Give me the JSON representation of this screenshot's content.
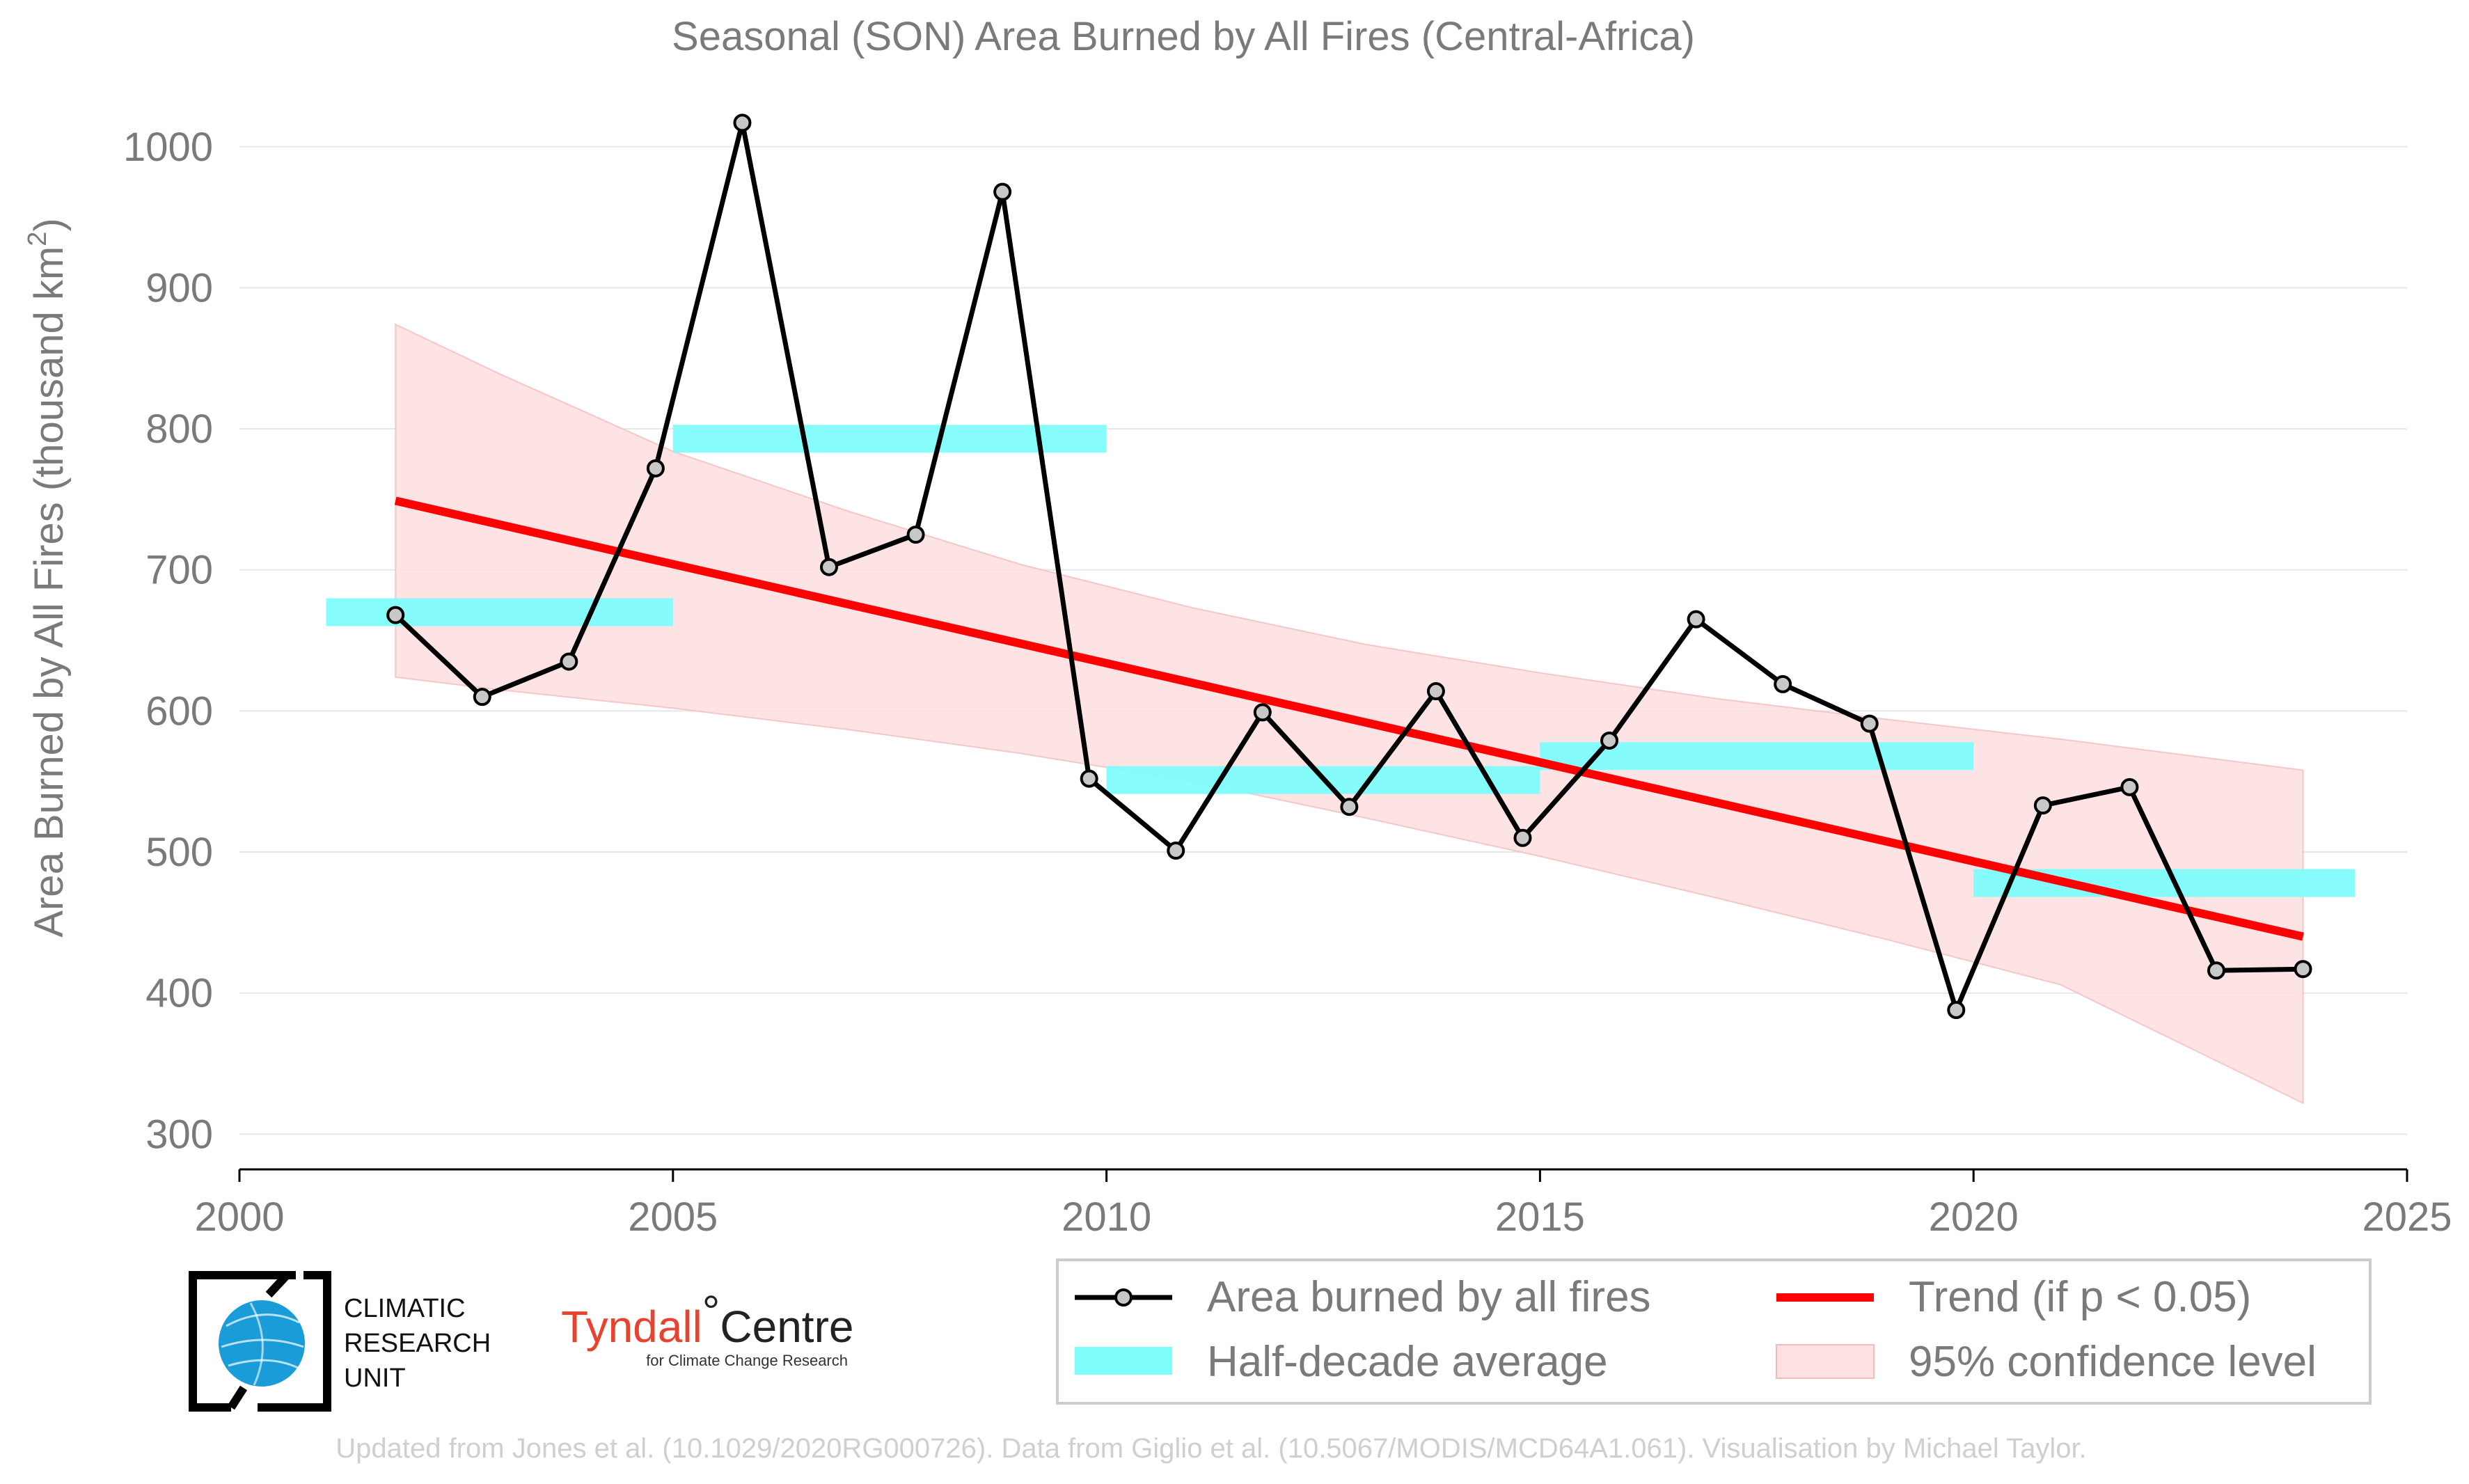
{
  "title": "Seasonal (SON) Area Burned by All Fires (Central-Africa)",
  "footer": "Updated from Jones et al. (10.1029/2020RG000726). Data from Giglio et al. (10.5067/MODIS/MCD64A1.061). Visualisation by Michael Taylor.",
  "logos": {
    "cru_lines": [
      "CLIMATIC",
      "RESEARCH",
      "UNIT"
    ],
    "tyndall_a": "Tyndall",
    "tyndall_degree": "°",
    "tyndall_b": "Centre",
    "tyndall_sub": "for Climate Change Research"
  },
  "legend": {
    "series": "Area burned by all fires",
    "half": "Half-decade average",
    "trend": "Trend (if p < 0.05)",
    "ci": "95% confidence level"
  },
  "colors": {
    "series": "#000000",
    "marker_fill": "#c8c8c8",
    "trend": "#ff0000",
    "half": "#7ffcfc",
    "ci": "#fde2e3",
    "grid": "#e6e6e6",
    "text": "#7a7a7a"
  },
  "chart_data": {
    "type": "line",
    "title": "Seasonal (SON) Area Burned by All Fires (Central-Africa)",
    "ylabel": "Area Burned by All Fires (thousand km²)",
    "xlim": [
      2000,
      2025
    ],
    "ylim": [
      275,
      1030
    ],
    "xticks": [
      2000,
      2005,
      2010,
      2015,
      2020,
      2025
    ],
    "yticks": [
      300,
      400,
      500,
      600,
      700,
      800,
      900,
      1000
    ],
    "grid": "horizontal",
    "legend_position": "bottom-right",
    "series": [
      {
        "name": "Area burned by all fires",
        "x": [
          2001.8,
          2002.8,
          2003.8,
          2004.8,
          2005.8,
          2006.8,
          2007.8,
          2008.8,
          2009.8,
          2010.8,
          2011.8,
          2012.8,
          2013.8,
          2014.8,
          2015.8,
          2016.8,
          2017.8,
          2018.8,
          2019.8,
          2020.8,
          2021.8,
          2022.8,
          2023.8
        ],
        "y": [
          668,
          610,
          635,
          772,
          1017,
          702,
          725,
          968,
          552,
          501,
          599,
          532,
          614,
          510,
          579,
          665,
          619,
          591,
          388,
          533,
          546,
          416,
          417
        ]
      }
    ],
    "half_decade_average": [
      {
        "x0": 2001,
        "x1": 2005,
        "y": 670
      },
      {
        "x0": 2005,
        "x1": 2010,
        "y": 793
      },
      {
        "x0": 2010,
        "x1": 2015,
        "y": 551
      },
      {
        "x0": 2015,
        "x1": 2020,
        "y": 568
      },
      {
        "x0": 2020,
        "x1": 2024.4,
        "y": 478
      }
    ],
    "trend": {
      "name": "Trend (if p < 0.05)",
      "x": [
        2001.8,
        2023.8
      ],
      "y": [
        749,
        440
      ]
    },
    "confidence_band": {
      "name": "95% confidence level",
      "x": [
        2001.8,
        2003,
        2005,
        2007,
        2009,
        2011,
        2013,
        2015,
        2017,
        2019,
        2021,
        2023.8
      ],
      "upper": [
        874,
        839,
        784,
        742,
        704,
        673,
        647,
        627,
        609,
        594,
        580,
        558
      ],
      "lower": [
        624,
        615,
        602,
        587,
        570,
        550,
        524,
        497,
        468,
        438,
        406,
        322
      ]
    }
  }
}
